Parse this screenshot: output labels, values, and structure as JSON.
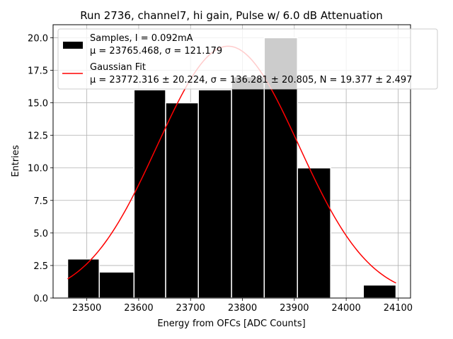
{
  "chart_data": {
    "type": "bar",
    "title": "Run 2736, channel7, hi gain, Pulse w/ 6.0 dB Attenuation",
    "xlabel": "Energy from OFCs [ADC Counts]",
    "ylabel": "Entries",
    "xlim": [
      23435,
      24124
    ],
    "ylim": [
      0,
      21
    ],
    "xticks": [
      "23500",
      "23600",
      "23700",
      "23800",
      "23900",
      "24000",
      "24100"
    ],
    "yticks": [
      "0.0",
      "2.5",
      "5.0",
      "7.5",
      "10.0",
      "12.5",
      "15.0",
      "17.5",
      "20.0"
    ],
    "grid": true,
    "legend_position": "top-left",
    "bars": [
      {
        "x0": 23463,
        "x1": 23524,
        "count": 3
      },
      {
        "x0": 23524,
        "x1": 23591,
        "count": 2
      },
      {
        "x0": 23591,
        "x1": 23652,
        "count": 16
      },
      {
        "x0": 23652,
        "x1": 23715,
        "count": 15
      },
      {
        "x0": 23715,
        "x1": 23779,
        "count": 16
      },
      {
        "x0": 23779,
        "x1": 23842,
        "count": 17
      },
      {
        "x0": 23842,
        "x1": 23906,
        "count": 20
      },
      {
        "x0": 23906,
        "x1": 23970,
        "count": 10
      },
      {
        "x0": 23970,
        "x1": 24033,
        "count": 0
      },
      {
        "x0": 24033,
        "x1": 24096,
        "count": 1
      }
    ],
    "series": [
      {
        "name": "Samples, I = 0.092mA",
        "stats": "μ = 23765.468, σ = 121.179",
        "color": "#000000"
      },
      {
        "name": "Gaussian Fit",
        "stats": "μ = 23772.316 ± 20.224, σ = 136.281 ± 20.805, N = 19.377 ± 2.497",
        "color": "#ff0000"
      }
    ],
    "fit": {
      "mu": 23772.316,
      "sigma": 136.281,
      "peak": 19.35,
      "x_start": 23463,
      "x_end": 24096
    }
  }
}
